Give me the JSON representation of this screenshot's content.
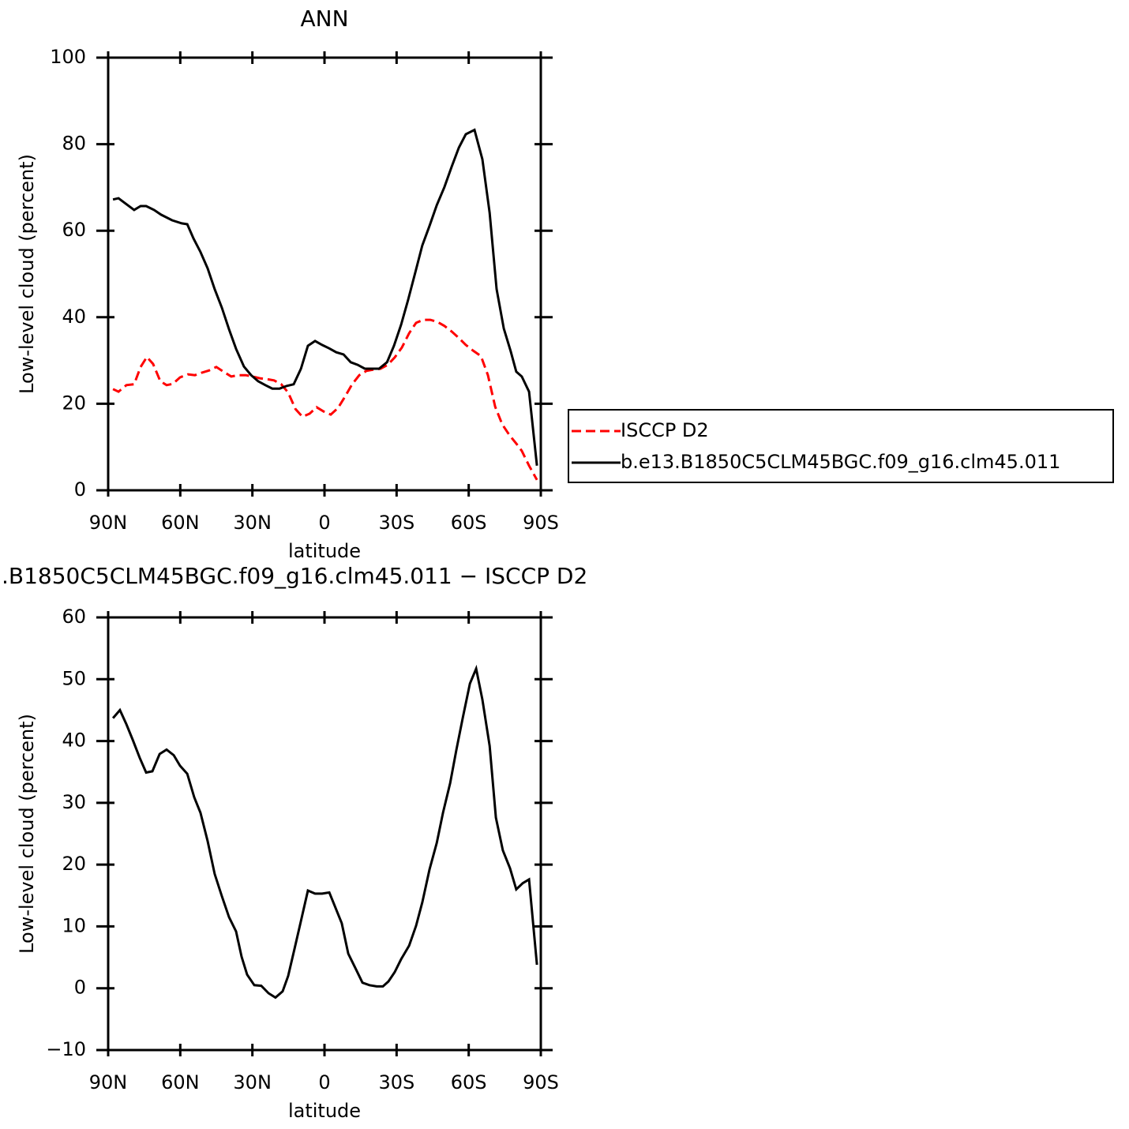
{
  "chart_data": [
    {
      "type": "line",
      "title": "ANN",
      "xlabel": "latitude",
      "ylabel": "Low-level cloud (percent)",
      "xlim": [
        90,
        -90
      ],
      "xticks": [
        {
          "value": 90,
          "label": "90N"
        },
        {
          "value": 60,
          "label": "60N"
        },
        {
          "value": 30,
          "label": "30N"
        },
        0,
        {
          "value": -30,
          "label": "30S"
        },
        {
          "value": -60,
          "label": "60S"
        },
        {
          "value": -90,
          "label": "90S"
        }
      ],
      "ylim": [
        0,
        100
      ],
      "yticks": [
        0,
        20,
        40,
        60,
        80,
        100
      ],
      "legend": "outside-right",
      "series": [
        {
          "name": "ISCCP D2",
          "color": "#ff0000",
          "dash": true,
          "x": [
            88.0,
            85.7,
            82.4,
            79.2,
            76.5,
            73.9,
            71.3,
            68.3,
            65.7,
            63.1,
            60.1,
            56.8,
            53.9,
            50.9,
            48.0,
            45.0,
            42.0,
            38.8,
            35.8,
            32.8,
            29.9,
            26.9,
            24.0,
            21.0,
            18.0,
            15.1,
            12.1,
            9.2,
            6.2,
            3.3,
            0.3,
            -2.6,
            -5.6,
            -8.6,
            -11.5,
            -14.5,
            -17.4,
            -20.4,
            -23.3,
            -26.3,
            -29.2,
            -32.2,
            -35.2,
            -38.1,
            -41.1,
            -44.0,
            -47.0,
            -49.9,
            -52.9,
            -55.9,
            -58.8,
            -61.8,
            -65.1,
            -68.0,
            -71.0,
            -73.9,
            -76.9,
            -79.8,
            -82.1,
            -85.1,
            -88.4
          ],
          "values": [
            23.4,
            22.8,
            24.3,
            24.5,
            28.5,
            30.8,
            29.2,
            25.2,
            24.3,
            24.6,
            26.1,
            26.8,
            26.6,
            27.2,
            27.7,
            28.5,
            27.4,
            26.3,
            26.6,
            26.6,
            26.3,
            25.9,
            25.7,
            25.4,
            24.5,
            22.6,
            18.8,
            17.0,
            17.7,
            19.2,
            18.2,
            17.5,
            19.0,
            21.7,
            24.5,
            26.6,
            27.6,
            27.9,
            28.1,
            29.0,
            30.7,
            33.0,
            36.3,
            38.7,
            39.4,
            39.4,
            38.9,
            38.0,
            36.7,
            35.2,
            33.6,
            32.3,
            31.0,
            26.6,
            19.3,
            15.3,
            12.8,
            10.8,
            9.1,
            5.7,
            2.4
          ]
        },
        {
          "name": "b.e13.B1850C5CLM45BGC.f09_g16.clm45.011",
          "color": "#000000",
          "dash": false,
          "x": [
            88.0,
            85.7,
            83.1,
            79.2,
            76.5,
            74.2,
            70.9,
            68.0,
            63.4,
            59.4,
            57.1,
            54.5,
            51.6,
            48.6,
            45.7,
            42.7,
            39.7,
            36.8,
            33.5,
            30.5,
            27.6,
            24.6,
            21.7,
            18.7,
            15.8,
            12.8,
            9.8,
            6.9,
            3.9,
            1.0,
            -2.0,
            -4.9,
            -7.9,
            -10.9,
            -13.8,
            -16.8,
            -19.7,
            -22.7,
            -26.0,
            -28.9,
            -31.9,
            -34.8,
            -37.8,
            -40.7,
            -43.7,
            -46.7,
            -49.9,
            -52.9,
            -55.9,
            -58.8,
            -62.4,
            -65.7,
            -68.7,
            -71.6,
            -74.6,
            -77.5,
            -79.8,
            -82.1,
            -85.1,
            -88.4
          ],
          "values": [
            67.2,
            67.5,
            66.4,
            64.8,
            65.7,
            65.7,
            64.8,
            63.7,
            62.4,
            61.7,
            61.5,
            58.2,
            55.1,
            51.3,
            46.5,
            42.2,
            37.2,
            32.7,
            28.6,
            26.6,
            25.2,
            24.3,
            23.5,
            23.5,
            24.1,
            24.5,
            28.1,
            33.4,
            34.5,
            33.6,
            32.8,
            31.9,
            31.4,
            29.6,
            29.0,
            28.1,
            28.1,
            28.1,
            29.6,
            33.4,
            38.3,
            44.0,
            50.4,
            56.6,
            61.1,
            65.9,
            70.1,
            74.8,
            79.2,
            82.3,
            83.3,
            76.5,
            64.1,
            46.5,
            37.4,
            32.1,
            27.4,
            26.3,
            22.8,
            5.7
          ]
        }
      ]
    },
    {
      "type": "line",
      "title": ".B1850C5CLM45BGC.f09_g16.clm45.011 − ISCCP D2",
      "xlabel": "latitude",
      "ylabel": "Low-level cloud (percent)",
      "xlim": [
        90,
        -90
      ],
      "xticks": [
        {
          "value": 90,
          "label": "90N"
        },
        {
          "value": 60,
          "label": "60N"
        },
        {
          "value": 30,
          "label": "30N"
        },
        0,
        {
          "value": -30,
          "label": "30S"
        },
        {
          "value": -60,
          "label": "60S"
        },
        {
          "value": -90,
          "label": "90S"
        }
      ],
      "ylim": [
        -10,
        60
      ],
      "yticks": [
        {
          "value": -10,
          "label": "−10"
        },
        0,
        10,
        20,
        30,
        40,
        50,
        60
      ],
      "color": "#000000",
      "x": [
        88.0,
        85.1,
        82.4,
        79.8,
        76.9,
        74.2,
        71.6,
        68.6,
        65.7,
        62.7,
        60.1,
        57.1,
        54.2,
        51.6,
        48.6,
        45.7,
        42.7,
        39.7,
        36.8,
        34.5,
        32.2,
        29.2,
        26.3,
        23.3,
        20.4,
        17.4,
        15.1,
        12.5,
        9.8,
        6.9,
        3.9,
        1.0,
        -2.0,
        -4.6,
        -7.2,
        -9.9,
        -12.8,
        -15.8,
        -18.7,
        -21.7,
        -24.3,
        -26.6,
        -29.2,
        -31.9,
        -35.2,
        -38.1,
        -40.7,
        -43.7,
        -46.7,
        -49.3,
        -52.3,
        -54.9,
        -57.6,
        -60.5,
        -63.1,
        -65.7,
        -68.7,
        -71.3,
        -74.2,
        -77.2,
        -79.8,
        -82.5,
        -85.1,
        -88.4
      ],
      "values": [
        43.7,
        45.0,
        42.7,
        40.2,
        37.3,
        34.9,
        35.1,
        37.9,
        38.6,
        37.7,
        36.0,
        34.7,
        30.9,
        28.4,
        23.8,
        18.5,
        14.9,
        11.5,
        9.2,
        5.1,
        2.2,
        0.5,
        0.4,
        -0.8,
        -1.5,
        -0.5,
        2.0,
        6.3,
        10.9,
        15.8,
        15.3,
        15.3,
        15.5,
        13.0,
        10.5,
        5.6,
        3.3,
        0.9,
        0.5,
        0.3,
        0.3,
        1.1,
        2.6,
        4.7,
        6.9,
        10.1,
        13.9,
        19.2,
        23.5,
        28.4,
        33.2,
        38.6,
        43.9,
        49.3,
        51.7,
        46.7,
        39.2,
        27.6,
        22.3,
        19.4,
        16.0,
        17.0,
        17.6,
        3.8
      ]
    }
  ]
}
